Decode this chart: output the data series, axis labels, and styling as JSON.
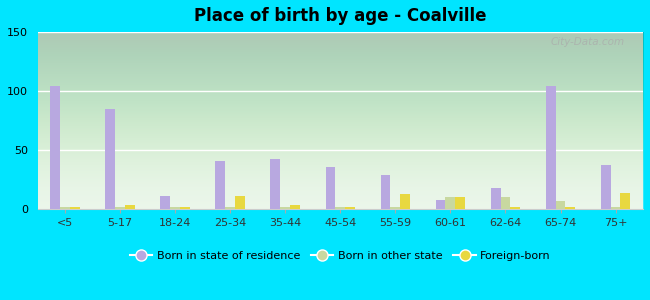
{
  "title": "Place of birth by age - Coalville",
  "categories": [
    "<5",
    "5-17",
    "18-24",
    "25-34",
    "35-44",
    "45-54",
    "55-59",
    "60-61",
    "62-64",
    "65-74",
    "75+"
  ],
  "born_in_state": [
    104,
    85,
    11,
    41,
    42,
    36,
    29,
    8,
    18,
    104,
    37
  ],
  "born_other_state": [
    2,
    2,
    2,
    2,
    2,
    2,
    2,
    10,
    10,
    7,
    2
  ],
  "foreign_born": [
    2,
    3,
    2,
    11,
    3,
    2,
    13,
    10,
    2,
    2,
    14
  ],
  "ylim": [
    0,
    150
  ],
  "yticks": [
    0,
    50,
    100,
    150
  ],
  "bar_color_state": "#b8a8e0",
  "bar_color_other": "#c8d8a0",
  "bar_color_foreign": "#e8d840",
  "background_top": "#f0f8f0",
  "background_bottom": "#d8ecd8",
  "outer_background": "#00e5ff",
  "legend_labels": [
    "Born in state of residence",
    "Born in other state",
    "Foreign-born"
  ],
  "watermark": "City-Data.com",
  "bar_width": 0.18,
  "figsize": [
    6.5,
    3.0
  ],
  "dpi": 100
}
